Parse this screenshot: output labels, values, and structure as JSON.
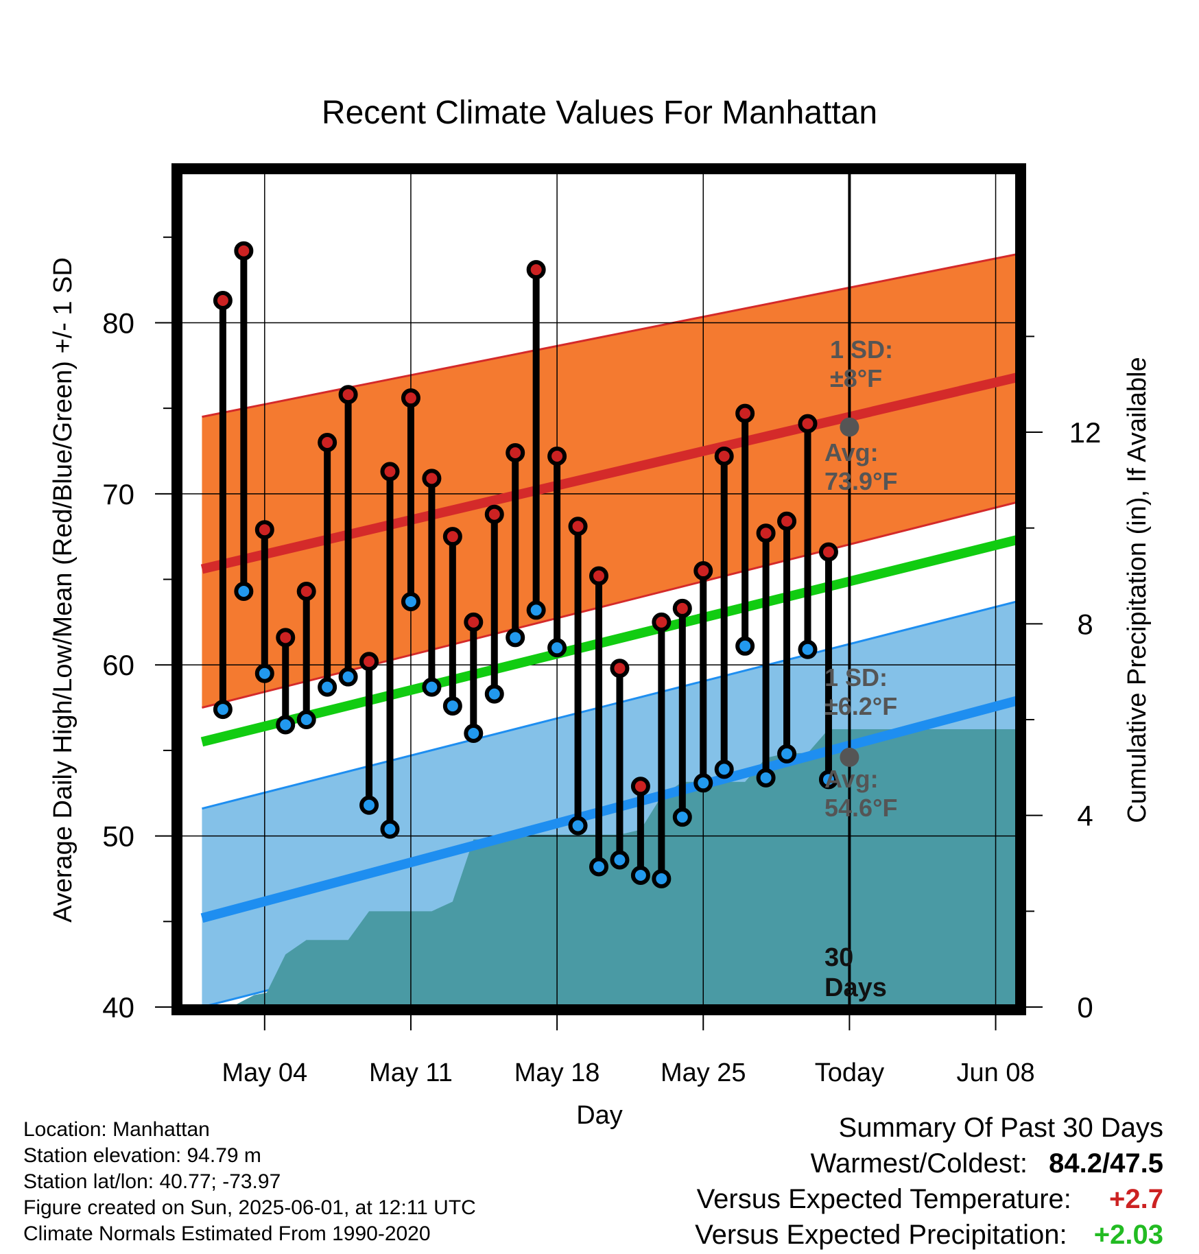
{
  "chart_data": {
    "type": "line",
    "title": "Recent Climate Values For Manhattan",
    "xlabel": "Day",
    "ylabel": "Average Daily High/Low/Mean (Red/Blue/Green) +/- 1 SD",
    "y2label": "Cumulative Precipitation (in), If Available",
    "xlim_days": [
      -1,
      39
    ],
    "ylim": [
      40,
      89
    ],
    "y2lim": [
      0,
      17.5
    ],
    "x_ticks": [
      {
        "day": 3,
        "label": "May 04"
      },
      {
        "day": 10,
        "label": "May 11"
      },
      {
        "day": 17,
        "label": "May 18"
      },
      {
        "day": 24,
        "label": "May 25"
      },
      {
        "day": 31,
        "label": "Today"
      },
      {
        "day": 38,
        "label": "Jun 08"
      }
    ],
    "y_ticks": [
      40,
      50,
      60,
      70,
      80
    ],
    "y2_ticks": [
      0,
      4,
      8,
      12
    ],
    "grid": true,
    "colors": {
      "high_marker": "#cc2222",
      "low_marker": "#2299ee",
      "high_normal": "#d42a2a",
      "low_normal": "#1e8ef0",
      "mean_normal": "#11cc11",
      "high_band": "#f47a30",
      "low_band": "#84c1e8",
      "precip": "#4a9aa4",
      "gray_dot": "#555555"
    },
    "high_band": {
      "days": [
        0,
        39
      ],
      "upper": [
        74.5,
        84.0
      ],
      "mid": [
        65.6,
        76.8
      ],
      "lower": [
        57.5,
        69.5
      ]
    },
    "low_band": {
      "days": [
        0,
        39
      ],
      "upper": [
        51.6,
        63.7
      ],
      "mid": [
        45.2,
        57.9
      ],
      "lower": [
        40.0,
        52.1
      ]
    },
    "mean_normal": {
      "days": [
        0,
        39
      ],
      "values": [
        55.5,
        67.3
      ]
    },
    "days": [
      1,
      2,
      3,
      4,
      5,
      6,
      7,
      8,
      9,
      10,
      11,
      12,
      13,
      14,
      15,
      16,
      17,
      18,
      19,
      20,
      21,
      22,
      23,
      24,
      25,
      26,
      27,
      28,
      29,
      30
    ],
    "highs": [
      81.3,
      84.2,
      67.9,
      61.6,
      64.3,
      73.0,
      75.8,
      60.2,
      71.3,
      75.6,
      70.9,
      67.5,
      62.5,
      68.8,
      72.4,
      83.1,
      72.2,
      68.1,
      65.2,
      59.8,
      52.9,
      62.5,
      63.3,
      65.5,
      72.2,
      74.7,
      67.7,
      68.4,
      74.1,
      66.6
    ],
    "lows": [
      57.4,
      64.3,
      59.5,
      56.5,
      56.8,
      58.7,
      59.3,
      51.8,
      50.4,
      63.7,
      58.7,
      57.6,
      56.0,
      58.3,
      61.6,
      63.2,
      61.0,
      50.6,
      48.2,
      48.6,
      47.7,
      47.5,
      51.1,
      53.1,
      53.9,
      61.1,
      53.4,
      54.8,
      60.9,
      53.3
    ],
    "precip_steps": [
      [
        0,
        0.0
      ],
      [
        1.4,
        0.0
      ],
      [
        2.5,
        0.25
      ],
      [
        3.1,
        0.3
      ],
      [
        4.0,
        1.1
      ],
      [
        5.0,
        1.4
      ],
      [
        7.0,
        1.4
      ],
      [
        8.0,
        2.0
      ],
      [
        11.0,
        2.0
      ],
      [
        12.0,
        2.2
      ],
      [
        13.0,
        3.5
      ],
      [
        14.0,
        3.5
      ],
      [
        15.0,
        3.6
      ],
      [
        20.0,
        3.6
      ],
      [
        21.0,
        3.7
      ],
      [
        22.0,
        4.4
      ],
      [
        23.0,
        4.7
      ],
      [
        26.0,
        4.7
      ],
      [
        27.0,
        5.2
      ],
      [
        28.0,
        5.3
      ],
      [
        29.0,
        5.3
      ],
      [
        30.0,
        5.8
      ],
      [
        39.0,
        5.8
      ]
    ],
    "today_day": 31,
    "annotations": {
      "high_sd_label": "1 SD:",
      "high_sd_value": "±8°F",
      "high_avg_label": "Avg:",
      "high_avg_value": "73.9°F",
      "high_avg": 73.9,
      "low_sd_label": "1 SD:",
      "low_sd_value": "±6.2°F",
      "low_avg_label": "Avg:",
      "low_avg_value": "54.6°F",
      "low_avg": 54.6,
      "period_value": "30",
      "period_unit": "Days"
    }
  },
  "info": {
    "location": "Location: Manhattan",
    "elevation": "Station elevation: 94.79 m",
    "latlon": "Station lat/lon: 40.77; -73.97",
    "created": "Figure created on Sun, 2025-06-01, at 12:11 UTC",
    "normals": "Climate Normals Estimated From 1990-2020"
  },
  "summary": {
    "title": "Summary Of Past 30 Days",
    "warm_cold_label": "Warmest/Coldest:",
    "warm_cold_value": "84.2/47.5",
    "temp_label": "Versus Expected Temperature:",
    "temp_value": "+2.7",
    "temp_color": "#cc2222",
    "precip_label": "Versus Expected Precipitation:",
    "precip_value": "+2.03",
    "precip_color": "#22bb22"
  }
}
